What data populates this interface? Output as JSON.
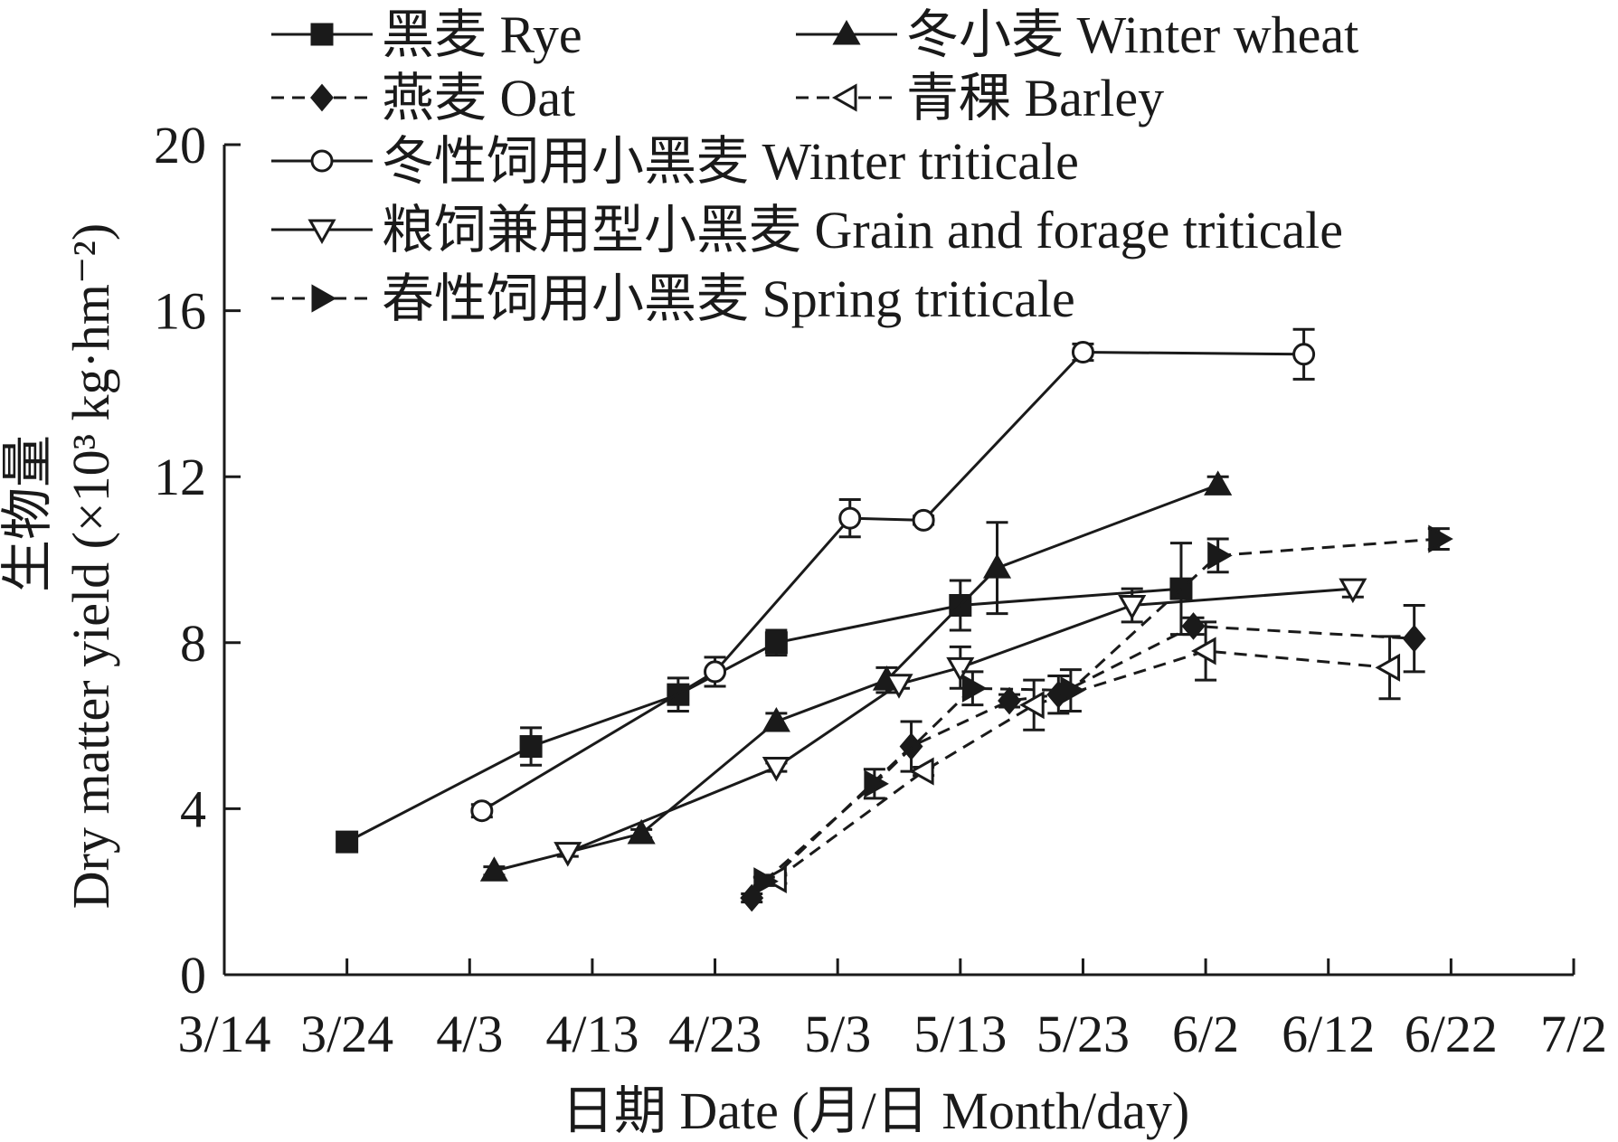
{
  "chart_data": {
    "type": "line",
    "xlabel": "日期 Date (月/日 Month/day)",
    "ylabel_cn": "生物量",
    "ylabel_en": "Dry matter yield (×10³ kg·hm⁻²)",
    "ylim": [
      0,
      20
    ],
    "yticks": [
      "0",
      "4",
      "8",
      "12",
      "16",
      "20"
    ],
    "xlim": [
      "3/14",
      "7/2"
    ],
    "xticks": [
      "3/14",
      "3/24",
      "4/3",
      "4/13",
      "4/23",
      "5/3",
      "5/13",
      "5/23",
      "6/2",
      "6/12",
      "6/22",
      "7/2"
    ],
    "legend_position": "top-left",
    "grid": false,
    "series": [
      {
        "name": "黑麦 Rye",
        "dash": "solid",
        "marker": "square-filled",
        "points": [
          {
            "x": "3/24",
            "y": 3.2,
            "err": 0.15
          },
          {
            "x": "4/8",
            "y": 5.5,
            "err": 0.45
          },
          {
            "x": "4/20",
            "y": 6.75,
            "err": 0.4
          },
          {
            "x": "4/28",
            "y": 8.0,
            "err": 0.3
          },
          {
            "x": "5/13",
            "y": 8.9,
            "err": 0.6
          },
          {
            "x": "5/31",
            "y": 9.3,
            "err": 1.1
          }
        ]
      },
      {
        "name": "冬小麦 Winter wheat",
        "dash": "solid",
        "marker": "triangle-up-filled",
        "points": [
          {
            "x": "4/5",
            "y": 2.5,
            "err": 0.1
          },
          {
            "x": "4/17",
            "y": 3.4,
            "err": 0.1
          },
          {
            "x": "4/28",
            "y": 6.1,
            "err": 0.2
          },
          {
            "x": "5/7",
            "y": 7.1,
            "err": 0.3
          },
          {
            "x": "5/16",
            "y": 9.8,
            "err": 1.1
          },
          {
            "x": "6/3",
            "y": 11.8,
            "err": 0.2
          }
        ]
      },
      {
        "name": "燕麦 Oat",
        "dash": "dashed",
        "marker": "diamond-filled",
        "points": [
          {
            "x": "4/26",
            "y": 1.85,
            "err": 0.1
          },
          {
            "x": "5/9",
            "y": 5.5,
            "err": 0.6
          },
          {
            "x": "5/17",
            "y": 6.6,
            "err": 0.15
          },
          {
            "x": "5/21",
            "y": 6.75,
            "err": 0.45
          },
          {
            "x": "6/1",
            "y": 8.4,
            "err": 0.2
          },
          {
            "x": "6/19",
            "y": 8.1,
            "err": 0.8
          }
        ]
      },
      {
        "name": "青稞 Barley",
        "dash": "dashed",
        "marker": "triangle-left-open",
        "points": [
          {
            "x": "4/28",
            "y": 2.3,
            "err": 0.1
          },
          {
            "x": "5/10",
            "y": 4.9,
            "err": 0.1
          },
          {
            "x": "5/19",
            "y": 6.5,
            "err": 0.6
          },
          {
            "x": "6/2",
            "y": 7.8,
            "err": 0.7
          },
          {
            "x": "6/17",
            "y": 7.4,
            "err": 0.75
          }
        ]
      },
      {
        "name": "冬性饲用小黑麦 Winter triticale",
        "dash": "solid",
        "marker": "circle-open",
        "points": [
          {
            "x": "4/4",
            "y": 3.95,
            "err": 0.15
          },
          {
            "x": "4/23",
            "y": 7.3,
            "err": 0.35
          },
          {
            "x": "5/4",
            "y": 11.0,
            "err": 0.45
          },
          {
            "x": "5/10",
            "y": 10.95,
            "err": 0.1
          },
          {
            "x": "5/23",
            "y": 15.0,
            "err": 0.2
          },
          {
            "x": "6/10",
            "y": 14.95,
            "err": 0.6
          }
        ]
      },
      {
        "name": "粮饲兼用型小黑麦 Grain and forage triticale",
        "dash": "solid",
        "marker": "triangle-down-open",
        "points": [
          {
            "x": "4/11",
            "y": 2.95,
            "err": 0.1
          },
          {
            "x": "4/28",
            "y": 5.0,
            "err": 0.1
          },
          {
            "x": "5/8",
            "y": 7.0,
            "err": 0.1
          },
          {
            "x": "5/13",
            "y": 7.4,
            "err": 0.5
          },
          {
            "x": "5/27",
            "y": 8.9,
            "err": 0.4
          },
          {
            "x": "6/14",
            "y": 9.3,
            "err": 0.2
          }
        ]
      },
      {
        "name": "春性饲用小黑麦 Spring triticale",
        "dash": "dashed",
        "marker": "triangle-right-filled",
        "points": [
          {
            "x": "4/27",
            "y": 2.25,
            "err": 0.1
          },
          {
            "x": "5/6",
            "y": 4.6,
            "err": 0.35
          },
          {
            "x": "5/14",
            "y": 6.9,
            "err": 0.4
          },
          {
            "x": "5/22",
            "y": 6.85,
            "err": 0.5
          },
          {
            "x": "6/3",
            "y": 10.1,
            "err": 0.4
          },
          {
            "x": "6/21",
            "y": 10.5,
            "err": 0.25
          }
        ]
      }
    ]
  }
}
